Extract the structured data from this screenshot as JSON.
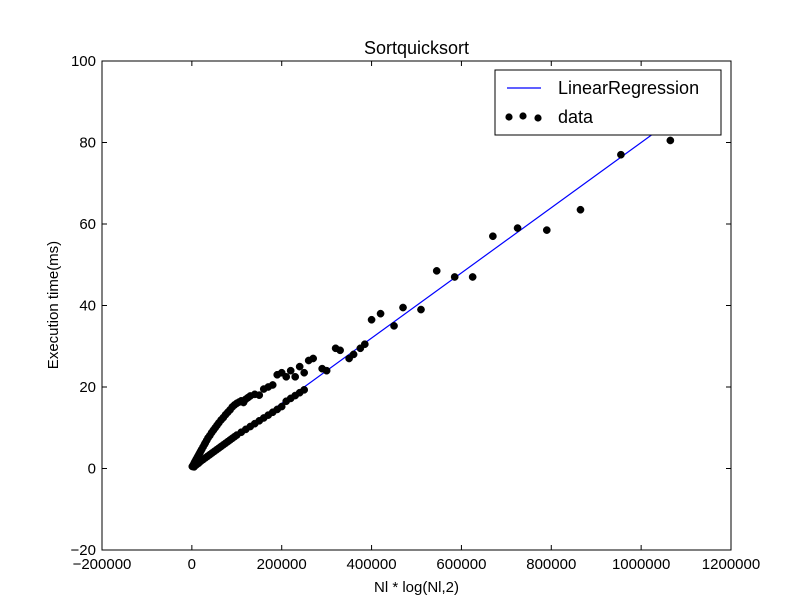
{
  "chart_data": {
    "type": "scatter",
    "title": "Sortquicksort",
    "xlabel": "Nl * log(Nl,2)",
    "ylabel": "Execution time(ms)",
    "xlim": [
      -200000,
      1200000
    ],
    "ylim": [
      -20,
      100
    ],
    "xticks": [
      -200000,
      0,
      200000,
      400000,
      600000,
      800000,
      1000000,
      1200000
    ],
    "xtick_labels": [
      "−200000",
      "0",
      "200000",
      "400000",
      "600000",
      "800000",
      "1000000",
      "1200000"
    ],
    "yticks": [
      -20,
      0,
      20,
      40,
      60,
      80,
      100
    ],
    "ytick_labels": [
      "−20",
      "0",
      "20",
      "40",
      "60",
      "80",
      "100"
    ],
    "legend_position": "top-right",
    "series": [
      {
        "name": "LinearRegression",
        "kind": "line",
        "color": "#0000ff",
        "x": [
          0,
          1160000
        ],
        "y": [
          0,
          92.8
        ]
      },
      {
        "name": "data",
        "kind": "scatter",
        "color": "#000000",
        "x": [
          1000,
          2000,
          3000,
          4000,
          5000,
          6000,
          8000,
          10000,
          12000,
          14000,
          16000,
          18000,
          20000,
          22000,
          25000,
          28000,
          30000,
          33000,
          36000,
          40000,
          44000,
          48000,
          52000,
          56000,
          60000,
          65000,
          70000,
          75000,
          80000,
          85000,
          90000,
          95000,
          100000,
          105000,
          110000,
          115000,
          120000,
          125000,
          130000,
          140000,
          150000,
          160000,
          170000,
          180000,
          190000,
          200000,
          210000,
          220000,
          230000,
          240000,
          250000,
          260000,
          270000,
          290000,
          300000,
          320000,
          330000,
          350000,
          360000,
          375000,
          385000,
          400000,
          420000,
          450000,
          470000,
          510000,
          545000,
          585000,
          625000,
          670000,
          725000,
          790000,
          865000,
          955000,
          1065000,
          5000,
          10000,
          15000,
          20000,
          25000,
          30000,
          35000,
          40000,
          45000,
          50000,
          55000,
          60000,
          65000,
          70000,
          75000,
          80000,
          85000,
          90000,
          95000,
          100000,
          110000,
          120000,
          130000,
          140000,
          150000,
          160000,
          170000,
          180000,
          190000,
          200000,
          210000,
          220000,
          230000,
          240000,
          250000
        ],
        "y": [
          0.5,
          0.6,
          0.8,
          1.0,
          1.2,
          1.5,
          1.9,
          2.3,
          2.7,
          3.1,
          3.5,
          3.9,
          4.3,
          4.7,
          5.3,
          5.9,
          6.3,
          6.9,
          7.5,
          8.1,
          8.8,
          9.4,
          10.0,
          10.6,
          11.2,
          11.9,
          12.5,
          13.2,
          13.8,
          14.4,
          15.1,
          15.6,
          16.0,
          16.3,
          16.6,
          16.2,
          17.0,
          17.4,
          17.8,
          18.2,
          18.0,
          19.5,
          20.0,
          20.5,
          23.0,
          23.5,
          22.5,
          24.0,
          22.5,
          25.0,
          23.5,
          26.5,
          27.0,
          24.5,
          24.0,
          29.5,
          29.0,
          27.0,
          28.0,
          29.5,
          30.5,
          36.5,
          38.0,
          35.0,
          39.5,
          39.0,
          48.5,
          47.0,
          47.0,
          57.0,
          59.0,
          58.5,
          63.5,
          77.0,
          80.5,
          0.4,
          0.9,
          1.3,
          1.8,
          2.2,
          2.6,
          3.0,
          3.4,
          3.8,
          4.2,
          4.6,
          5.0,
          5.4,
          5.8,
          6.2,
          6.6,
          7.0,
          7.4,
          7.8,
          8.2,
          8.9,
          9.6,
          10.3,
          11.0,
          11.7,
          12.4,
          13.1,
          13.8,
          14.5,
          15.2,
          16.5,
          17.2,
          17.9,
          18.6,
          19.3
        ]
      }
    ]
  }
}
